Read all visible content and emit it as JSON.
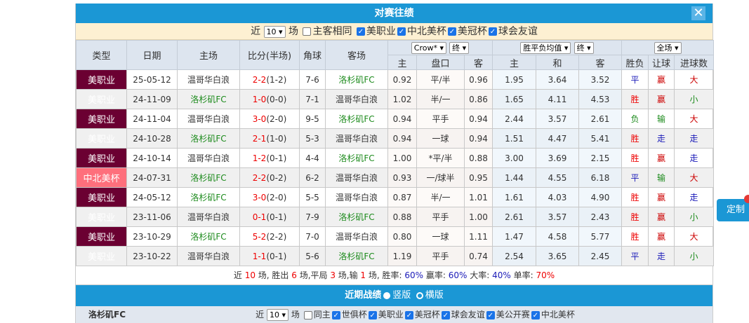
{
  "title": "对赛往绩",
  "filter": {
    "near": "近",
    "count": "10",
    "unit": "场",
    "same_home": "主客相同",
    "leagues": [
      "美职业",
      "中北美杯",
      "美冠杯",
      "球会友谊"
    ]
  },
  "headers": {
    "type": "类型",
    "date": "日期",
    "home": "主场",
    "score": "比分(半场)",
    "corner": "角球",
    "away": "客场",
    "asian_company": "Crow*",
    "asian_stage": "终",
    "euro_type": "胜平负均值",
    "euro_stage": "终",
    "period": "全场",
    "sub": [
      "主",
      "盘口",
      "客",
      "主",
      "和",
      "客",
      "胜负",
      "让球",
      "进球数"
    ]
  },
  "rows": [
    [
      "美职业",
      "25-05-12",
      "温哥华白浪",
      "2-2",
      "(1-2)",
      "7-6",
      "洛杉矶FC",
      "0.92",
      "平/半",
      "0.96",
      "1.95",
      "3.64",
      "3.52",
      "平",
      "赢",
      "大"
    ],
    [
      "美职业",
      "24-11-09",
      "洛杉矶FC",
      "1-0",
      "(0-0)",
      "7-1",
      "温哥华白浪",
      "1.02",
      "半/一",
      "0.86",
      "1.65",
      "4.11",
      "4.53",
      "胜",
      "赢",
      "小"
    ],
    [
      "美职业",
      "24-11-04",
      "温哥华白浪",
      "3-0",
      "(2-0)",
      "9-5",
      "洛杉矶FC",
      "0.94",
      "平手",
      "0.94",
      "2.44",
      "3.57",
      "2.61",
      "负",
      "输",
      "大"
    ],
    [
      "美职业",
      "24-10-28",
      "洛杉矶FC",
      "2-1",
      "(1-0)",
      "5-3",
      "温哥华白浪",
      "0.94",
      "一球",
      "0.94",
      "1.51",
      "4.47",
      "5.41",
      "胜",
      "走",
      "走"
    ],
    [
      "美职业",
      "24-10-14",
      "温哥华白浪",
      "1-2",
      "(0-1)",
      "4-4",
      "洛杉矶FC",
      "1.00",
      "*平/半",
      "0.88",
      "3.00",
      "3.69",
      "2.15",
      "胜",
      "赢",
      "走"
    ],
    [
      "中北美杯",
      "24-07-31",
      "洛杉矶FC",
      "2-2",
      "(0-2)",
      "6-2",
      "温哥华白浪",
      "0.93",
      "一/球半",
      "0.95",
      "1.44",
      "4.55",
      "6.18",
      "平",
      "输",
      "大"
    ],
    [
      "美职业",
      "24-05-12",
      "洛杉矶FC",
      "3-0",
      "(2-0)",
      "5-5",
      "温哥华白浪",
      "0.87",
      "半/一",
      "1.01",
      "1.61",
      "4.03",
      "4.90",
      "胜",
      "赢",
      "走"
    ],
    [
      "美职业",
      "23-11-06",
      "温哥华白浪",
      "0-1",
      "(0-1)",
      "7-9",
      "洛杉矶FC",
      "0.88",
      "平手",
      "1.00",
      "2.61",
      "3.57",
      "2.43",
      "胜",
      "赢",
      "小"
    ],
    [
      "美职业",
      "23-10-29",
      "洛杉矶FC",
      "5-2",
      "(2-2)",
      "7-0",
      "温哥华白浪",
      "0.80",
      "一球",
      "1.11",
      "1.47",
      "4.58",
      "5.77",
      "胜",
      "赢",
      "大"
    ],
    [
      "美职业",
      "23-10-22",
      "温哥华白浪",
      "1-1",
      "(0-1)",
      "5-6",
      "洛杉矶FC",
      "1.19",
      "平手",
      "0.74",
      "2.54",
      "3.65",
      "2.45",
      "平",
      "走",
      "小"
    ]
  ],
  "summary": [
    [
      "近 ",
      ""
    ],
    [
      "10",
      "red"
    ],
    [
      " 场, 胜出 ",
      ""
    ],
    [
      "6",
      "red"
    ],
    [
      " 场,平局 ",
      ""
    ],
    [
      "3",
      "red"
    ],
    [
      " 场,输 ",
      ""
    ],
    [
      "1",
      "red"
    ],
    [
      " 场, 胜率: ",
      ""
    ],
    [
      "60%",
      "blue"
    ],
    [
      " 赢率: ",
      ""
    ],
    [
      "60%",
      "blue"
    ],
    [
      " 大率: ",
      ""
    ],
    [
      "40%",
      "blue"
    ],
    [
      " 单率: ",
      ""
    ],
    [
      "70%",
      "red"
    ]
  ],
  "recent": {
    "title": "近期战绩",
    "vertical": "竖版",
    "horizontal": "横版"
  },
  "bottom": {
    "team": "洛杉矶FC",
    "near": "近",
    "count": "10",
    "unit": "场",
    "same_home": "同主",
    "leagues": [
      "世俱杯",
      "美职业",
      "美冠杯",
      "球会友谊",
      "美公开赛",
      "中北美杯"
    ]
  },
  "custom_button": "定制",
  "colors": {
    "accent": "#1b97d5",
    "league": "#6b0032",
    "cup": "#fe6f7c"
  }
}
